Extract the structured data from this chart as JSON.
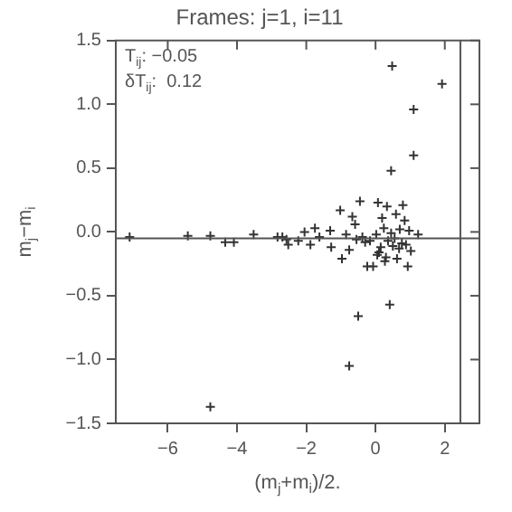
{
  "chart_data": {
    "type": "scatter",
    "title": "Frames: j=1, i=11",
    "xlabel": "(m$_{j}$+m$_{i}$)/2.",
    "ylabel": "m$_{j}$−m$_{i}$",
    "annotations": [
      "T$_{ij}$: −0.05",
      "δT$_{ij}$:  0.12"
    ],
    "xlim": [
      -7.5,
      3
    ],
    "xticks": [
      -6,
      -4,
      -2,
      0,
      2
    ],
    "ylim": [
      -1.5,
      1.5
    ],
    "yticks": [
      {
        "value": -1.5,
        "label": "−1.5"
      },
      {
        "value": -1,
        "label": "−1.0"
      },
      {
        "value": -0.5,
        "label": "−0.5"
      },
      {
        "value": 0,
        "label": "0.0"
      },
      {
        "value": 0.5,
        "label": "0.5"
      },
      {
        "value": 1,
        "label": "1.0"
      },
      {
        "value": 1.5,
        "label": "1.5"
      }
    ],
    "grid": false,
    "legend": false,
    "marker": "cross",
    "ref_lines": [
      {
        "axis": "y",
        "value": -0.05,
        "color": "#555555"
      },
      {
        "axis": "x",
        "value": 2.45,
        "color": "#555555"
      }
    ],
    "series": [
      {
        "color": "#333333",
        "x": [
          0.48,
          1.92,
          1.1,
          1.1,
          0.45,
          -4.77,
          -0.76,
          -0.5,
          0.41,
          -7.1,
          -5.42,
          -4.77,
          -4.34,
          -4.09,
          -3.52,
          -2.83,
          -2.69,
          -2.57,
          -2.52,
          -2.23,
          -2.05,
          -1.88,
          -1.75,
          -1.62,
          -1.31,
          -1.28,
          -1.02,
          -0.97,
          -0.85,
          -0.76,
          -0.67,
          -0.59,
          -0.45,
          -0.38,
          -0.24,
          -0.16,
          -0.07,
          0.02,
          0.07,
          0.1,
          0.19,
          0.24,
          0.27,
          0.33,
          0.36,
          0.45,
          0.5,
          0.59,
          0.62,
          0.7,
          0.76,
          0.79,
          0.84,
          0.88,
          0.93,
          0.97,
          1.02,
          1.23,
          -0.3,
          0.15,
          0.55,
          0.05,
          -0.55,
          0.3,
          0.68
        ],
        "values": [
          1.3,
          1.16,
          0.96,
          0.6,
          0.48,
          -1.37,
          -1.05,
          -0.66,
          -0.57,
          -0.04,
          -0.03,
          -0.03,
          -0.08,
          -0.08,
          -0.02,
          -0.04,
          -0.04,
          -0.06,
          -0.1,
          -0.07,
          0.0,
          -0.1,
          0.03,
          -0.04,
          0.01,
          -0.12,
          0.17,
          -0.21,
          -0.02,
          -0.14,
          0.12,
          0.06,
          0.24,
          -0.04,
          -0.27,
          -0.07,
          -0.27,
          -0.02,
          0.23,
          -0.16,
          0.11,
          0.03,
          -0.23,
          0.2,
          -0.07,
          -0.01,
          -0.11,
          0.14,
          -0.21,
          0.02,
          -0.09,
          0.21,
          0.09,
          -0.1,
          -0.27,
          0.01,
          -0.15,
          -0.02,
          -0.08,
          -0.12,
          -0.05,
          -0.18,
          -0.06,
          -0.2,
          -0.13
        ]
      }
    ]
  }
}
